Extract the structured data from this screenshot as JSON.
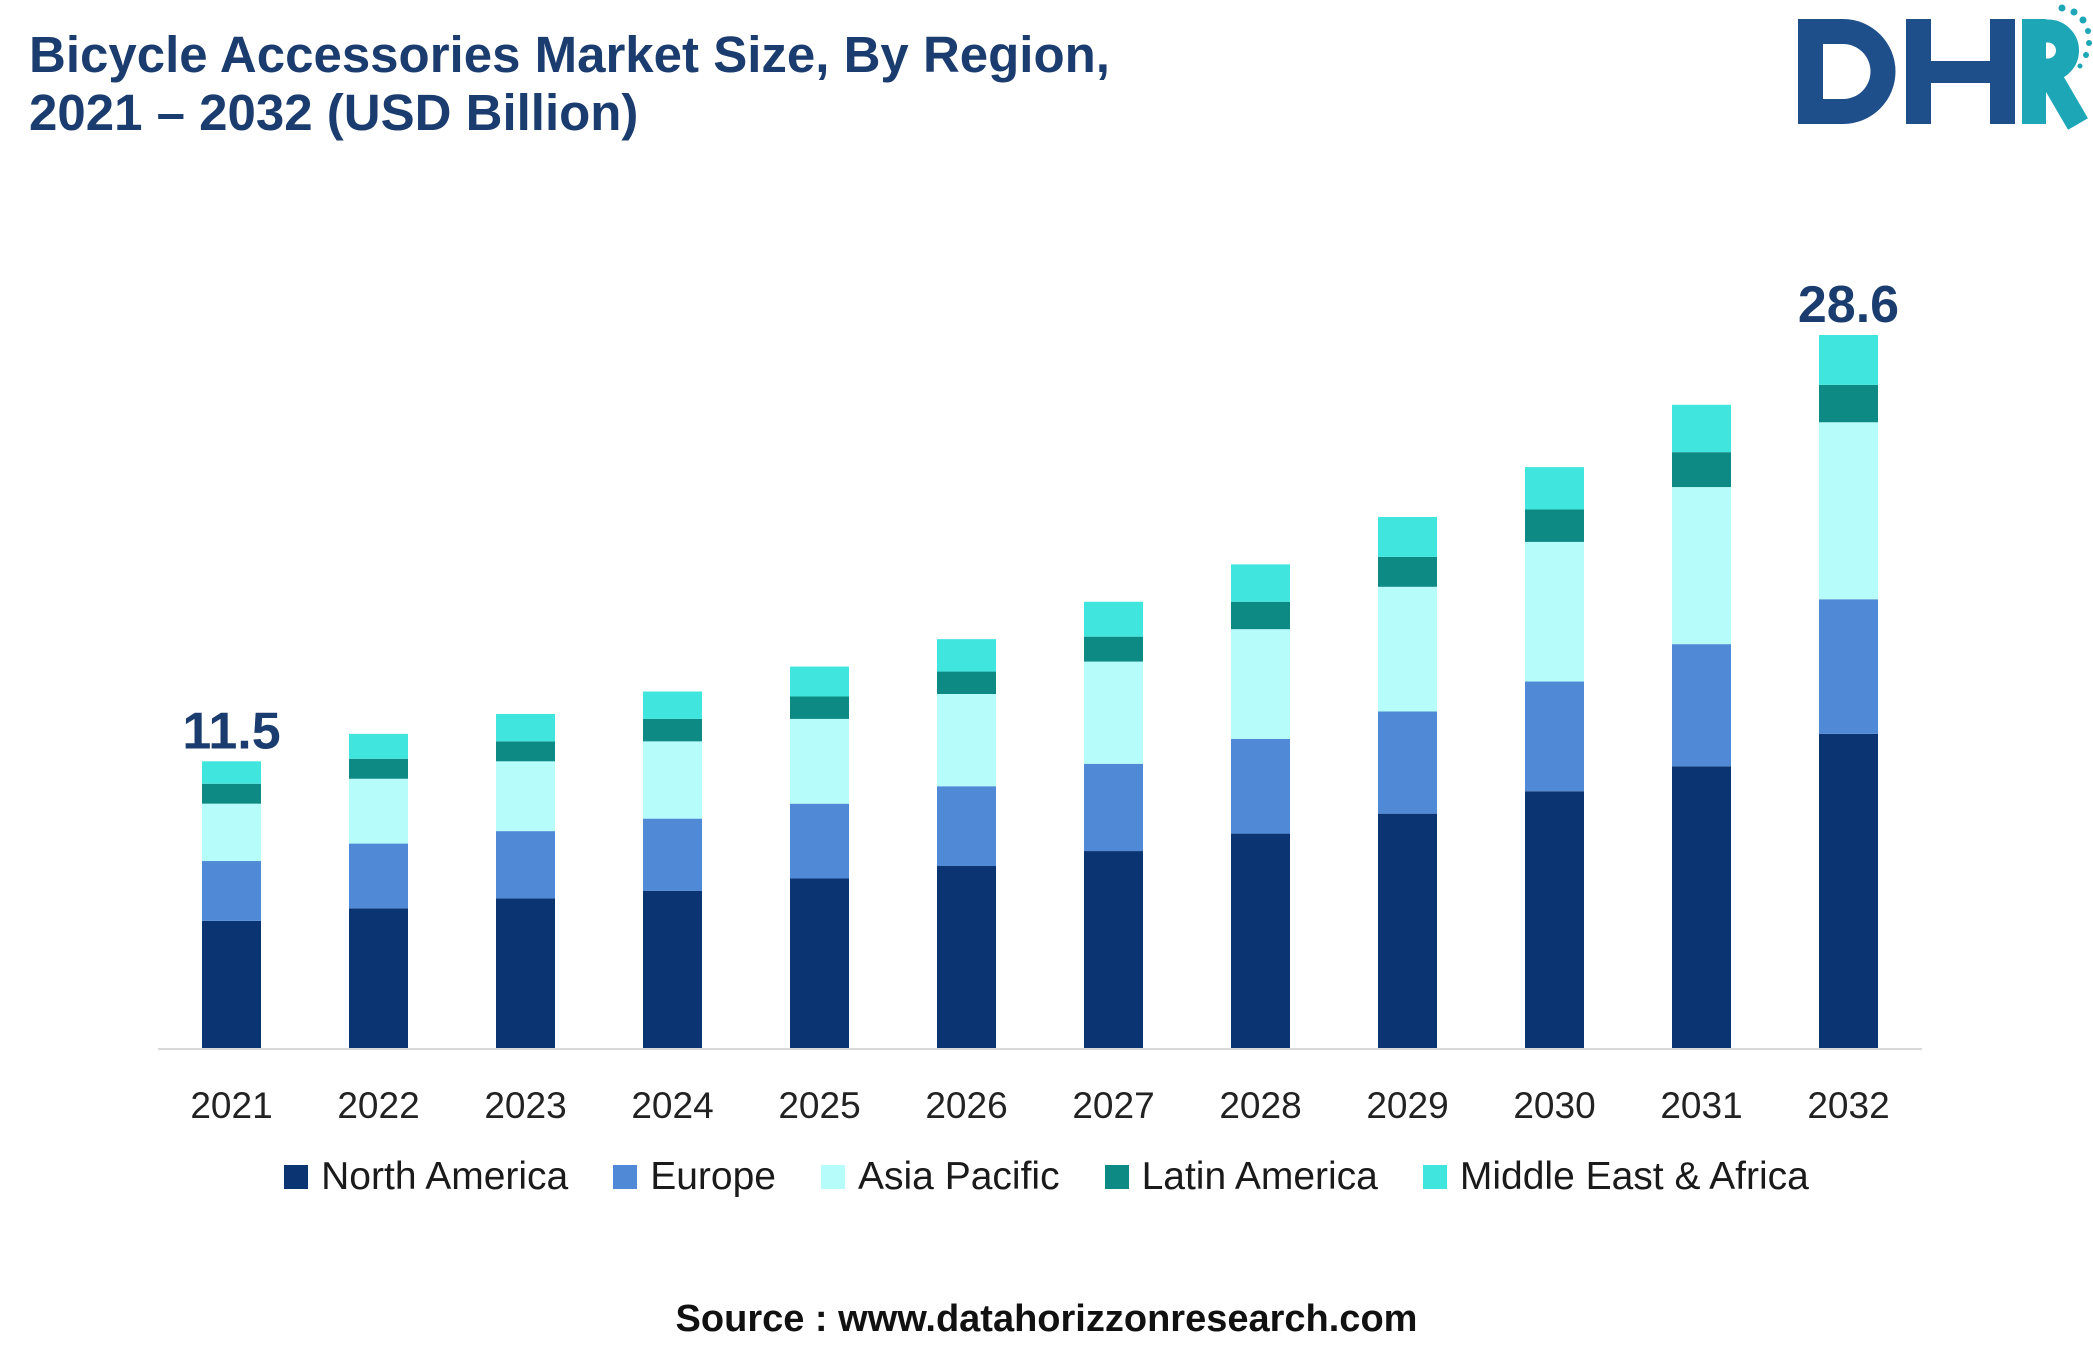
{
  "logo": {
    "text": "DHR",
    "primary_color": "#1f4f8b",
    "accent_color": "#1ca6b6"
  },
  "chart_data": {
    "type": "bar",
    "stacked": true,
    "title": [
      "Bicycle Accessories Market Size, By Region,",
      "2021 – 2032 (USD Billion)"
    ],
    "categories": [
      "2021",
      "2022",
      "2023",
      "2024",
      "2025",
      "2026",
      "2027",
      "2028",
      "2029",
      "2030",
      "2031",
      "2032"
    ],
    "series": [
      {
        "name": "North America",
        "color": "#0b3572",
        "values": [
          5.1,
          5.6,
          6.0,
          6.3,
          6.8,
          7.3,
          7.9,
          8.6,
          9.4,
          10.3,
          11.3,
          12.6
        ]
      },
      {
        "name": "Europe",
        "color": "#5089d6",
        "values": [
          2.4,
          2.6,
          2.7,
          2.9,
          3.0,
          3.2,
          3.5,
          3.8,
          4.1,
          4.4,
          4.9,
          5.4
        ]
      },
      {
        "name": "Asia Pacific",
        "color": "#b5fcfb",
        "values": [
          2.3,
          2.6,
          2.8,
          3.1,
          3.4,
          3.7,
          4.1,
          4.4,
          5.0,
          5.6,
          6.3,
          7.1
        ]
      },
      {
        "name": "Latin America",
        "color": "#0e8a84",
        "values": [
          0.8,
          0.8,
          0.8,
          0.9,
          0.9,
          0.9,
          1.0,
          1.1,
          1.2,
          1.3,
          1.4,
          1.5
        ]
      },
      {
        "name": "Middle East & Africa",
        "color": "#40e5dd",
        "values": [
          0.9,
          1.0,
          1.1,
          1.1,
          1.2,
          1.3,
          1.4,
          1.5,
          1.6,
          1.7,
          1.9,
          2.0
        ]
      }
    ],
    "total_labels": [
      {
        "category": "2021",
        "text": "11.5"
      },
      {
        "category": "2032",
        "text": "28.6"
      }
    ],
    "grid": false,
    "legend_position": "bottom"
  },
  "source": "Source : www.datahorizzonresearch.com"
}
